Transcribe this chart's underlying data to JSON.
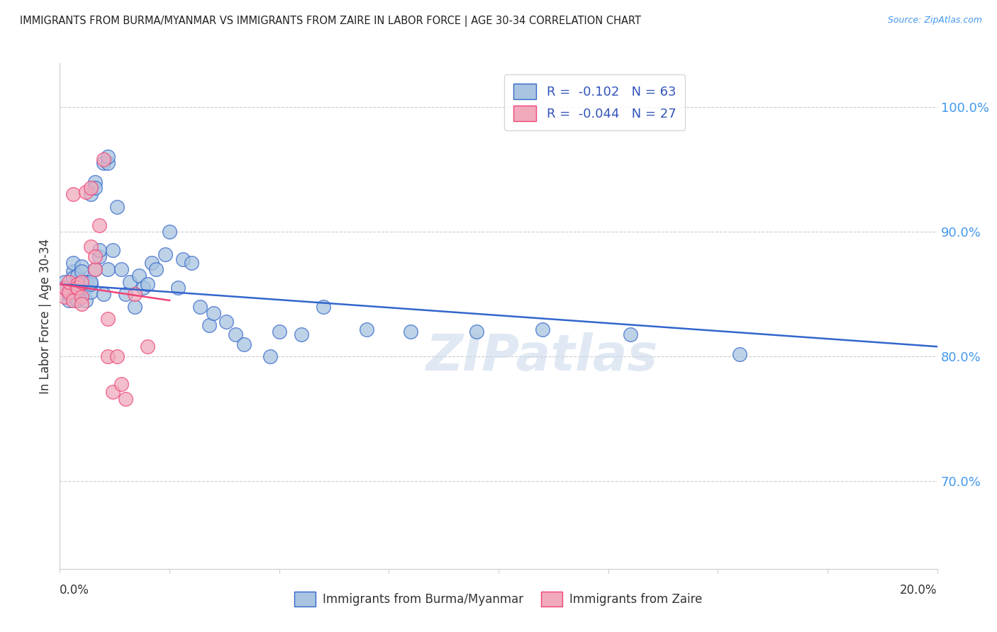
{
  "title": "IMMIGRANTS FROM BURMA/MYANMAR VS IMMIGRANTS FROM ZAIRE IN LABOR FORCE | AGE 30-34 CORRELATION CHART",
  "source": "Source: ZipAtlas.com",
  "ylabel": "In Labor Force | Age 30-34",
  "ytick_labels": [
    "100.0%",
    "90.0%",
    "80.0%",
    "70.0%"
  ],
  "ytick_values": [
    1.0,
    0.9,
    0.8,
    0.7
  ],
  "xlim": [
    0.0,
    0.2
  ],
  "ylim": [
    0.63,
    1.035
  ],
  "legend_blue_R": "-0.102",
  "legend_blue_N": "63",
  "legend_pink_R": "-0.044",
  "legend_pink_N": "27",
  "blue_color": "#A8C4E0",
  "pink_color": "#F0AABC",
  "trendline_blue_color": "#3366CC",
  "trendline_pink_color": "#EE4477",
  "watermark": "ZIPatlas",
  "blue_points_x": [
    0.001,
    0.001,
    0.002,
    0.002,
    0.003,
    0.003,
    0.003,
    0.004,
    0.004,
    0.004,
    0.005,
    0.005,
    0.005,
    0.005,
    0.006,
    0.006,
    0.006,
    0.007,
    0.007,
    0.007,
    0.007,
    0.008,
    0.008,
    0.008,
    0.009,
    0.009,
    0.01,
    0.01,
    0.011,
    0.011,
    0.011,
    0.012,
    0.013,
    0.014,
    0.015,
    0.016,
    0.017,
    0.018,
    0.019,
    0.02,
    0.021,
    0.022,
    0.024,
    0.025,
    0.027,
    0.028,
    0.03,
    0.032,
    0.034,
    0.035,
    0.038,
    0.04,
    0.042,
    0.048,
    0.05,
    0.055,
    0.06,
    0.07,
    0.08,
    0.095,
    0.11,
    0.13,
    0.155
  ],
  "blue_points_y": [
    0.86,
    0.855,
    0.845,
    0.85,
    0.868,
    0.863,
    0.875,
    0.855,
    0.845,
    0.865,
    0.85,
    0.858,
    0.872,
    0.868,
    0.845,
    0.855,
    0.86,
    0.852,
    0.858,
    0.86,
    0.93,
    0.87,
    0.94,
    0.935,
    0.88,
    0.885,
    0.85,
    0.955,
    0.955,
    0.96,
    0.87,
    0.885,
    0.92,
    0.87,
    0.85,
    0.86,
    0.84,
    0.865,
    0.855,
    0.858,
    0.875,
    0.87,
    0.882,
    0.9,
    0.855,
    0.878,
    0.875,
    0.84,
    0.825,
    0.835,
    0.828,
    0.818,
    0.81,
    0.8,
    0.82,
    0.818,
    0.84,
    0.822,
    0.82,
    0.82,
    0.822,
    0.818,
    0.802
  ],
  "pink_points_x": [
    0.001,
    0.001,
    0.002,
    0.002,
    0.003,
    0.003,
    0.004,
    0.004,
    0.004,
    0.005,
    0.005,
    0.005,
    0.006,
    0.007,
    0.007,
    0.008,
    0.008,
    0.009,
    0.01,
    0.011,
    0.011,
    0.012,
    0.013,
    0.014,
    0.015,
    0.017,
    0.02
  ],
  "pink_points_y": [
    0.848,
    0.855,
    0.852,
    0.86,
    0.845,
    0.93,
    0.855,
    0.858,
    0.855,
    0.848,
    0.86,
    0.842,
    0.932,
    0.935,
    0.888,
    0.87,
    0.88,
    0.905,
    0.958,
    0.83,
    0.8,
    0.772,
    0.8,
    0.778,
    0.766,
    0.85,
    0.808
  ],
  "trendline_blue_x0": 0.0,
  "trendline_blue_y0": 0.858,
  "trendline_blue_x1": 0.2,
  "trendline_blue_y1": 0.808,
  "trendline_pink_x0": 0.0,
  "trendline_pink_y0": 0.858,
  "trendline_pink_x1": 0.025,
  "trendline_pink_y1": 0.845
}
